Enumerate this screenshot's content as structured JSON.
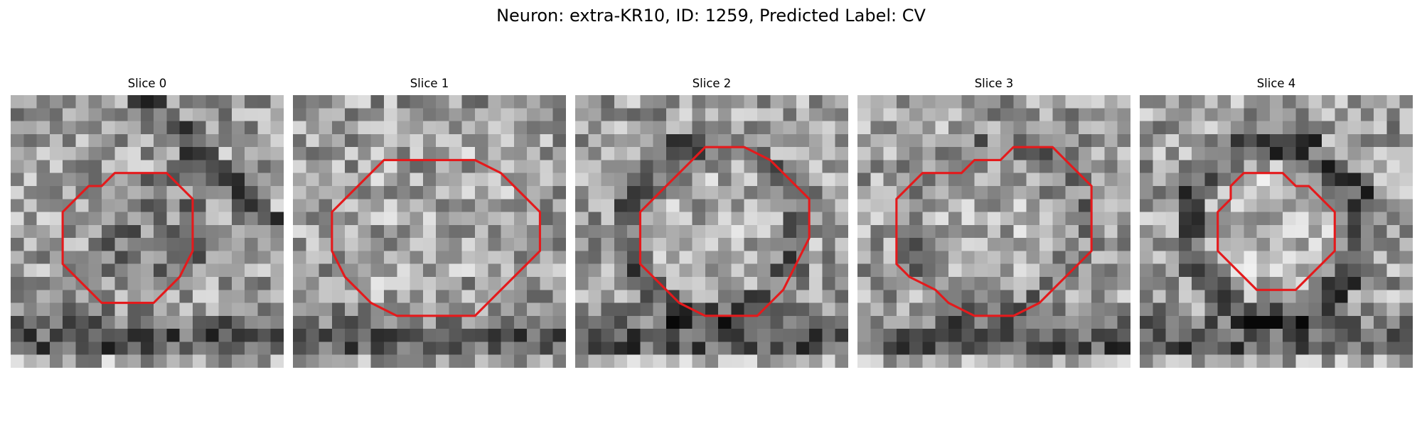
{
  "figure": {
    "title": "Neuron: extra-KR10, ID: 1259, Predicted Label: CV",
    "contour_color": "#e41a1c",
    "colormap": "gray",
    "panels": [
      {
        "label": "Slice 0",
        "seed": 11,
        "ring": 0.0,
        "inner": -0.35,
        "band": 1,
        "diag": 1,
        "contour": [
          [
            8,
            6
          ],
          [
            12,
            6
          ],
          [
            13,
            7
          ],
          [
            14,
            8
          ],
          [
            14,
            10
          ],
          [
            14,
            12
          ],
          [
            13,
            14
          ],
          [
            12,
            15
          ],
          [
            11,
            16
          ],
          [
            7,
            16
          ],
          [
            6,
            15
          ],
          [
            5,
            14
          ],
          [
            4,
            13
          ],
          [
            4,
            9
          ],
          [
            5,
            8
          ],
          [
            6,
            7
          ],
          [
            7,
            7
          ]
        ]
      },
      {
        "label": "Slice 1",
        "seed": 23,
        "ring": 0.1,
        "inner": 0.1,
        "band": 1,
        "diag": 0,
        "contour": [
          [
            9,
            5
          ],
          [
            14,
            5
          ],
          [
            16,
            6
          ],
          [
            17,
            7
          ],
          [
            18,
            8
          ],
          [
            19,
            9
          ],
          [
            19,
            12
          ],
          [
            18,
            13
          ],
          [
            17,
            14
          ],
          [
            16,
            15
          ],
          [
            15,
            16
          ],
          [
            14,
            17
          ],
          [
            12,
            17
          ],
          [
            8,
            17
          ],
          [
            6,
            16
          ],
          [
            5,
            15
          ],
          [
            4,
            14
          ],
          [
            3,
            12
          ],
          [
            3,
            9
          ],
          [
            4,
            8
          ],
          [
            5,
            7
          ],
          [
            6,
            6
          ],
          [
            7,
            5
          ]
        ]
      },
      {
        "label": "Slice 2",
        "seed": 37,
        "ring": -0.55,
        "inner": 0.15,
        "band": 1,
        "diag": 0,
        "contour": [
          [
            10,
            4
          ],
          [
            13,
            4
          ],
          [
            15,
            5
          ],
          [
            16,
            6
          ],
          [
            17,
            7
          ],
          [
            18,
            8
          ],
          [
            18,
            11
          ],
          [
            17,
            13
          ],
          [
            16,
            15
          ],
          [
            15,
            16
          ],
          [
            14,
            17
          ],
          [
            12,
            17
          ],
          [
            10,
            17
          ],
          [
            8,
            16
          ],
          [
            7,
            15
          ],
          [
            6,
            14
          ],
          [
            5,
            13
          ],
          [
            5,
            11
          ],
          [
            5,
            9
          ],
          [
            6,
            8
          ],
          [
            7,
            7
          ],
          [
            8,
            6
          ],
          [
            9,
            5
          ]
        ]
      },
      {
        "label": "Slice 3",
        "seed": 41,
        "ring": -0.3,
        "inner": 0.2,
        "band": 1,
        "diag": 0,
        "contour": [
          [
            13,
            4
          ],
          [
            15,
            4
          ],
          [
            16,
            5
          ],
          [
            17,
            6
          ],
          [
            18,
            7
          ],
          [
            18,
            12
          ],
          [
            17,
            13
          ],
          [
            16,
            14
          ],
          [
            15,
            15
          ],
          [
            14,
            16
          ],
          [
            12,
            17
          ],
          [
            9,
            17
          ],
          [
            7,
            16
          ],
          [
            6,
            15
          ],
          [
            4,
            14
          ],
          [
            3,
            13
          ],
          [
            3,
            8
          ],
          [
            4,
            7
          ],
          [
            5,
            6
          ],
          [
            8,
            6
          ],
          [
            9,
            5
          ],
          [
            11,
            5
          ],
          [
            12,
            4
          ]
        ]
      },
      {
        "label": "Slice 4",
        "seed": 53,
        "ring": -0.7,
        "inner": 0.3,
        "band": 1,
        "diag": 0,
        "contour": [
          [
            8,
            6
          ],
          [
            11,
            6
          ],
          [
            12,
            7
          ],
          [
            13,
            7
          ],
          [
            14,
            8
          ],
          [
            15,
            9
          ],
          [
            15,
            12
          ],
          [
            14,
            13
          ],
          [
            13,
            14
          ],
          [
            12,
            15
          ],
          [
            9,
            15
          ],
          [
            8,
            14
          ],
          [
            7,
            13
          ],
          [
            6,
            12
          ],
          [
            6,
            9
          ],
          [
            7,
            8
          ],
          [
            7,
            7
          ]
        ]
      }
    ]
  }
}
